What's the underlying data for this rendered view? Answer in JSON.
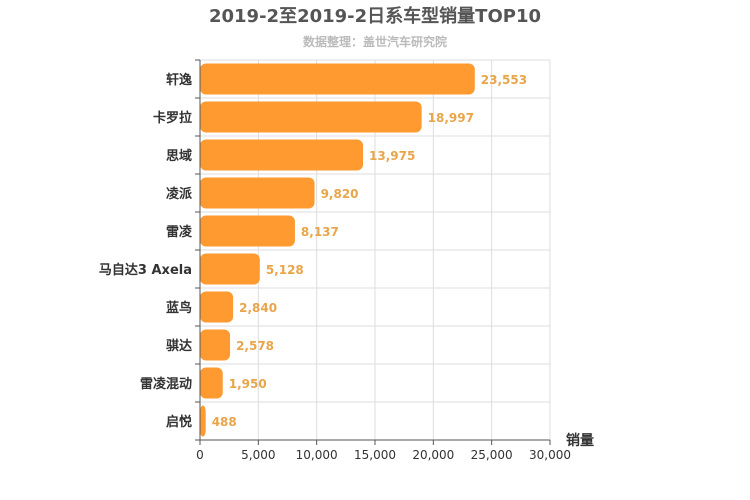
{
  "chart_data": {
    "type": "bar",
    "orientation": "horizontal",
    "title": "2019-2至2019-2日系车型销量TOP10",
    "subtitle": "数据整理：盖世汽车研究院",
    "xlabel": "销量",
    "ylabel": "",
    "categories": [
      "轩逸",
      "卡罗拉",
      "思域",
      "凌派",
      "雷凌",
      "马自达3 Axela",
      "蓝鸟",
      "骐达",
      "雷凌混动",
      "启悦"
    ],
    "values": [
      23553,
      18997,
      13975,
      9820,
      8137,
      5128,
      2840,
      2578,
      1950,
      488
    ],
    "value_labels": [
      "23,553",
      "18,997",
      "13,975",
      "9,820",
      "8,137",
      "5,128",
      "2,840",
      "2,578",
      "1,950",
      "488"
    ],
    "xlim": [
      0,
      30000
    ],
    "xticks": [
      0,
      5000,
      10000,
      15000,
      20000,
      25000,
      30000
    ],
    "xtick_labels": [
      "0",
      "5,000",
      "10,000",
      "15,000",
      "20,000",
      "25,000",
      "30,000"
    ],
    "grid": true,
    "bar_color": "#ff9a30",
    "label_color": "#e8a54a"
  }
}
